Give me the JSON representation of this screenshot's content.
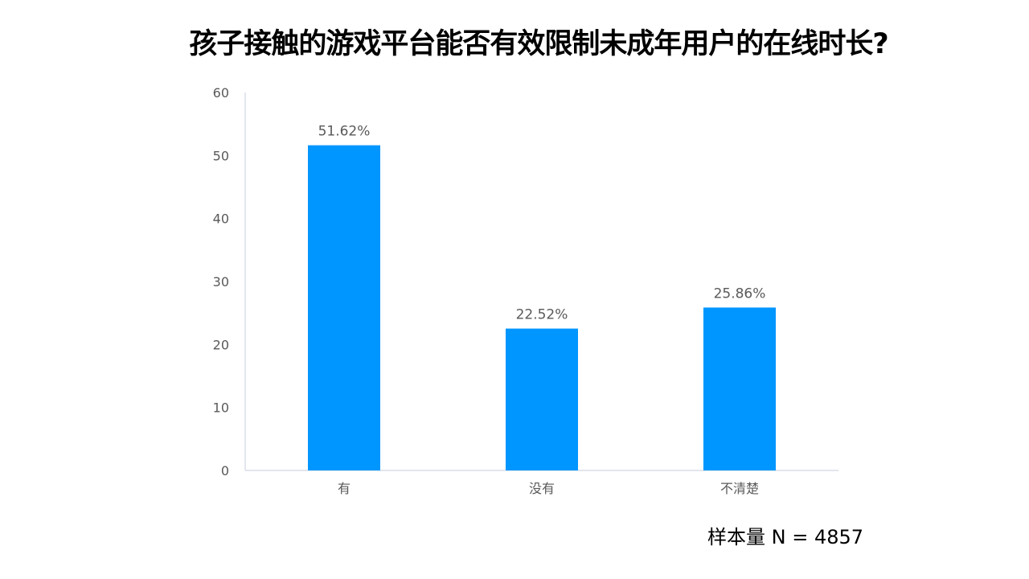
{
  "title": "孩子接触的游戏平台能否有效限制未成年用户的在线时长?",
  "sample_note": "样本量 N = 4857",
  "colors": {
    "bar": "#0096FF",
    "axis": "#D9DEE8",
    "tick_text": "#595959",
    "label_text": "#595959"
  },
  "chart_data": {
    "type": "bar",
    "title": "孩子接触的游戏平台能否有效限制未成年用户的在线时长?",
    "xlabel": "",
    "ylabel": "",
    "categories": [
      "有",
      "没有",
      "不清楚"
    ],
    "values": [
      51.62,
      22.52,
      25.86
    ],
    "data_labels": [
      "51.62%",
      "22.52%",
      "25.86%"
    ],
    "ylim": [
      0,
      60
    ],
    "yticks": [
      0,
      10,
      20,
      30,
      40,
      50,
      60
    ],
    "grid": false,
    "legend": "none"
  }
}
